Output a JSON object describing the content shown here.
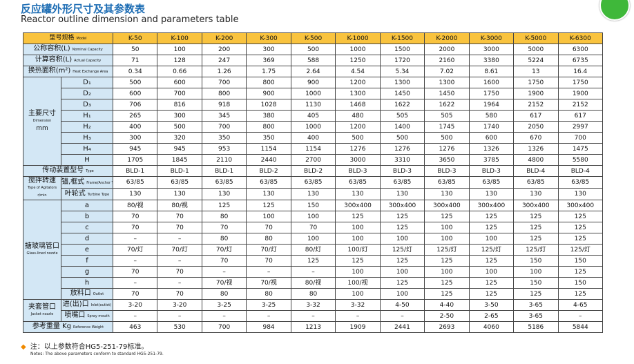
{
  "header": {
    "title": "反应罐外形尺寸及其参数表",
    "subtitle": "Reactor outline dimension and parameters table"
  },
  "table": {
    "head": {
      "zh": "型号规格",
      "en": "Model",
      "models": [
        "K-50",
        "K-100",
        "K-200",
        "K-300",
        "K-500",
        "K-1000",
        "K-1500",
        "K-2000",
        "K-3000",
        "K-5000",
        "K-6300"
      ]
    },
    "sections": [
      {
        "zh": "公称容积(L)",
        "en": "Nominal Capacity",
        "values": [
          50,
          100,
          200,
          300,
          500,
          1000,
          1500,
          2000,
          3000,
          5000,
          6300
        ]
      },
      {
        "zh": "计算容积(L)",
        "en": "Actual Capacity",
        "values": [
          71,
          128,
          247,
          369,
          588,
          1250,
          1720,
          2160,
          3380,
          5224,
          6735
        ]
      },
      {
        "zh": "换热面积(m²)",
        "en": "Heat Exchange Area",
        "values": [
          0.34,
          0.66,
          1.26,
          1.75,
          2.64,
          4.54,
          5.34,
          7.02,
          8.61,
          13,
          16.4
        ]
      },
      {
        "zh": "主要尺寸",
        "en": "Dimension",
        "unit": "mm",
        "rows": [
          {
            "label": "D₁",
            "values": [
              500,
              600,
              700,
              800,
              900,
              1200,
              1300,
              1300,
              1600,
              1750,
              1750
            ]
          },
          {
            "label": "D₂",
            "values": [
              600,
              700,
              800,
              900,
              1000,
              1300,
              1450,
              1450,
              1750,
              1900,
              1900
            ]
          },
          {
            "label": "D₃",
            "values": [
              706,
              816,
              918,
              1028,
              1130,
              1468,
              1622,
              1622,
              1964,
              2152,
              2152
            ]
          },
          {
            "label": "H₁",
            "values": [
              265,
              300,
              345,
              380,
              405,
              480,
              505,
              505,
              580,
              617,
              617
            ]
          },
          {
            "label": "H₂",
            "values": [
              400,
              500,
              700,
              800,
              1000,
              1200,
              1400,
              1745,
              1740,
              2050,
              2997
            ]
          },
          {
            "label": "H₃",
            "values": [
              300,
              320,
              350,
              350,
              400,
              500,
              500,
              500,
              600,
              670,
              700
            ]
          },
          {
            "label": "H₄",
            "values": [
              945,
              945,
              953,
              1154,
              1154,
              1276,
              1276,
              1276,
              1326,
              1326,
              1475
            ]
          },
          {
            "label": "H",
            "values": [
              1705,
              1845,
              2110,
              2440,
              2700,
              3000,
              3310,
              3650,
              3785,
              4800,
              5580
            ]
          }
        ]
      },
      {
        "zh": "传动装置型号",
        "en": "Type",
        "values": [
          "BLD-1",
          "BLD-1",
          "BLD-1",
          "BLD-2",
          "BLD-2",
          "BLD-3",
          "BLD-3",
          "BLD-3",
          "BLD-3",
          "BLD-4",
          "BLD-4"
        ]
      },
      {
        "zh": "搅拌转速",
        "en": "Type of Agitators",
        "unit": "r/min",
        "rows": [
          {
            "label": "锚,框式",
            "en": "Frame/Anchor Type",
            "values": [
              "63/85",
              "63/85",
              "63/85",
              "63/85",
              "63/85",
              "63/85",
              "63/85",
              "63/85",
              "63/85",
              "63/85",
              "63/85"
            ]
          },
          {
            "label": "叶轮式",
            "en": "Turbine Type",
            "values": [
              130,
              130,
              130,
              130,
              130,
              130,
              130,
              130,
              130,
              130,
              130
            ]
          }
        ]
      },
      {
        "zh": "搪玻璃管口",
        "en": "Glass-lined nozzle",
        "rows": [
          {
            "label": "a",
            "values": [
              "80/视",
              "80/视",
              125,
              125,
              150,
              "300x400",
              "300x400",
              "300x400",
              "300x400",
              "300x400",
              "300x400"
            ]
          },
          {
            "label": "b",
            "values": [
              70,
              70,
              80,
              100,
              100,
              125,
              125,
              125,
              125,
              125,
              125
            ]
          },
          {
            "label": "c",
            "values": [
              70,
              70,
              70,
              70,
              70,
              100,
              125,
              100,
              125,
              125,
              125
            ]
          },
          {
            "label": "d",
            "values": [
              "–",
              "–",
              80,
              80,
              100,
              100,
              100,
              100,
              100,
              125,
              125
            ]
          },
          {
            "label": "e",
            "values": [
              "70/灯",
              "70/灯",
              "70/灯",
              "70/灯",
              "80/灯",
              "100/灯",
              "125/灯",
              "125/灯",
              "125/灯",
              "125/灯",
              "125/灯"
            ]
          },
          {
            "label": "f",
            "values": [
              "–",
              "–",
              70,
              70,
              125,
              125,
              125,
              125,
              125,
              150,
              150
            ]
          },
          {
            "label": "g",
            "values": [
              70,
              70,
              "–",
              "–",
              "–",
              100,
              100,
              100,
              100,
              100,
              125
            ]
          },
          {
            "label": "h",
            "values": [
              "–",
              "–",
              "70/视",
              "70/视",
              "80/视",
              "100/视",
              125,
              125,
              125,
              150,
              150
            ]
          },
          {
            "label": "放料口",
            "en": "Outlet",
            "values": [
              70,
              70,
              80,
              80,
              80,
              100,
              100,
              125,
              125,
              125,
              125
            ]
          }
        ]
      },
      {
        "zh": "夹套管口",
        "en": "Jacket nozzle",
        "rows": [
          {
            "label": "进(出)口",
            "en": "Inlet(outlet)",
            "values": [
              "3-20",
              "3-20",
              "3-25",
              "3-25",
              "3-32",
              "3-32",
              "4-50",
              "4-40",
              "3-50",
              "3-65",
              "4-65"
            ]
          },
          {
            "label": "喷嘴口",
            "en": "Spray mouth",
            "values": [
              "–",
              "–",
              "–",
              "–",
              "–",
              "–",
              "–",
              "2-50",
              "2-65",
              "3-65",
              "–"
            ]
          }
        ]
      },
      {
        "zh": "参考重量 Kg",
        "en": "Reference Weight",
        "values": [
          463,
          530,
          700,
          984,
          1213,
          1909,
          2441,
          2693,
          4060,
          5186,
          5844
        ]
      }
    ]
  },
  "notes": {
    "zh": "注：以上参数符合HG5-251-79标准。",
    "en": "Notes: The above parameters conform to standard HG5-251-79."
  }
}
